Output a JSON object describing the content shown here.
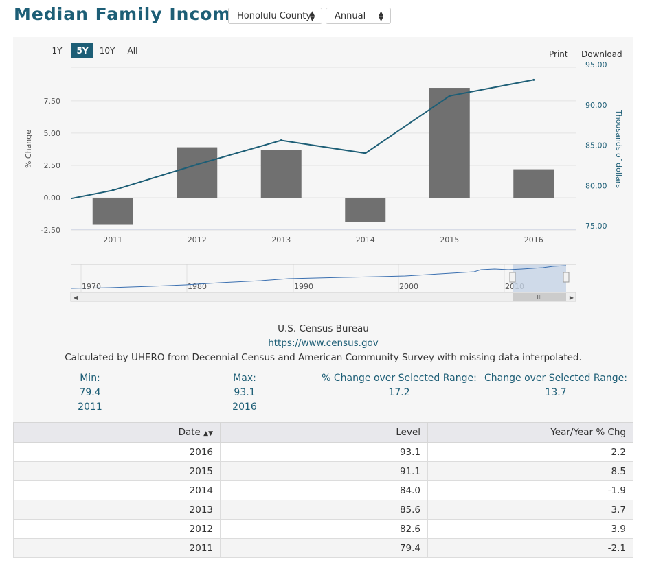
{
  "page": {
    "title": "Median Family Income",
    "geo_select": "Honolulu County",
    "freq_select": "Annual"
  },
  "chart_toolbar": {
    "ranges": [
      "1Y",
      "5Y",
      "10Y",
      "All"
    ],
    "active_range": "5Y",
    "print_label": "Print",
    "download_label": "Download"
  },
  "chart_data": {
    "type": "bar",
    "categories": [
      "2011",
      "2012",
      "2013",
      "2014",
      "2015",
      "2016"
    ],
    "series": [
      {
        "type": "bar",
        "axis": "left",
        "values": [
          -2.1,
          3.9,
          3.7,
          -1.9,
          8.5,
          2.2
        ],
        "color": "#707070"
      },
      {
        "type": "line",
        "axis": "right",
        "values": [
          79.4,
          82.6,
          85.6,
          84.0,
          91.1,
          93.1
        ],
        "color": "#1d5e76"
      }
    ],
    "ylabel": "% Change",
    "ylabel_right": "Thousands of dollars",
    "ylim": [
      -2.5,
      9.25
    ],
    "ylim_right": [
      75,
      95
    ],
    "y_ticks": [
      "7.50",
      "5.00",
      "2.50",
      "0.00",
      "-2.50"
    ],
    "y_ticks_right": [
      "95.00",
      "90.00",
      "85.00",
      "80.00",
      "75.00"
    ],
    "grid": true,
    "navigator": {
      "labels": [
        "1970",
        "1980",
        "1990",
        "2000",
        "2010"
      ],
      "scrollbar_grip": "III"
    }
  },
  "source": {
    "name": "U.S. Census Bureau",
    "url": "https://www.census.gov",
    "note": "Calculated by UHERO from Decennial Census and American Community Survey with missing data interpolated."
  },
  "stats": {
    "min_label": "Min:",
    "min_value": "79.4",
    "min_year": "2011",
    "max_label": "Max:",
    "max_value": "93.1",
    "max_year": "2016",
    "pct_label": "% Change over Selected Range:",
    "pct_value": "17.2",
    "chg_label": "Change over Selected Range:",
    "chg_value": "13.7"
  },
  "table": {
    "headers": {
      "date": "Date",
      "level": "Level",
      "yoy": "Year/Year % Chg"
    },
    "rows": [
      {
        "date": "2016",
        "level": "93.1",
        "yoy": "2.2"
      },
      {
        "date": "2015",
        "level": "91.1",
        "yoy": "8.5"
      },
      {
        "date": "2014",
        "level": "84.0",
        "yoy": "-1.9"
      },
      {
        "date": "2013",
        "level": "85.6",
        "yoy": "3.7"
      },
      {
        "date": "2012",
        "level": "82.6",
        "yoy": "3.9"
      },
      {
        "date": "2011",
        "level": "79.4",
        "yoy": "-2.1"
      }
    ]
  },
  "colors": {
    "accent": "#1d5e76",
    "bar": "#707070"
  }
}
